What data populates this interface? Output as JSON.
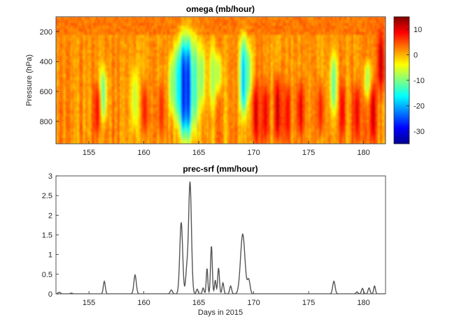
{
  "chart_data": [
    {
      "type": "heatmap",
      "title": "omega (mb/hour)",
      "ylabel": "Pressure (hPa)",
      "xlabel": "",
      "xlim": [
        152,
        182
      ],
      "ylim": [
        950,
        100
      ],
      "x_ticks": [
        155,
        160,
        165,
        170,
        175,
        180
      ],
      "y_ticks": [
        200,
        400,
        600,
        800
      ],
      "colorbar": {
        "range": [
          -35,
          15
        ],
        "ticks": [
          10,
          0,
          -10,
          -20,
          -30
        ],
        "colormap": "jet"
      },
      "features": [
        {
          "x": 163.6,
          "p_min": 250,
          "p_max": 900,
          "value": -32
        },
        {
          "x": 164.1,
          "p_min": 250,
          "p_max": 900,
          "value": -30
        },
        {
          "x": 163.1,
          "p_min": 300,
          "p_max": 800,
          "value": -18
        },
        {
          "x": 162.6,
          "p_min": 350,
          "p_max": 750,
          "value": -10
        },
        {
          "x": 164.7,
          "p_min": 250,
          "p_max": 850,
          "value": -15
        },
        {
          "x": 165.3,
          "p_min": 300,
          "p_max": 700,
          "value": -10
        },
        {
          "x": 169.1,
          "p_min": 250,
          "p_max": 750,
          "value": -22
        },
        {
          "x": 169.5,
          "p_min": 300,
          "p_max": 650,
          "value": -12
        },
        {
          "x": 166.3,
          "p_min": 300,
          "p_max": 700,
          "value": -9
        },
        {
          "x": 166.8,
          "p_min": 350,
          "p_max": 600,
          "value": -8
        },
        {
          "x": 156.3,
          "p_min": 450,
          "p_max": 800,
          "value": -13
        },
        {
          "x": 159.2,
          "p_min": 450,
          "p_max": 850,
          "value": -7
        },
        {
          "x": 177.3,
          "p_min": 350,
          "p_max": 750,
          "value": -12
        },
        {
          "x": 180.4,
          "p_min": 400,
          "p_max": 650,
          "value": -9
        },
        {
          "x": 155.8,
          "p_min": 550,
          "p_max": 900,
          "value": 9
        },
        {
          "x": 160.1,
          "p_min": 550,
          "p_max": 900,
          "value": 8
        },
        {
          "x": 161.6,
          "p_min": 550,
          "p_max": 900,
          "value": 7
        },
        {
          "x": 170.2,
          "p_min": 550,
          "p_max": 950,
          "value": 11
        },
        {
          "x": 171.1,
          "p_min": 550,
          "p_max": 950,
          "value": 10
        },
        {
          "x": 172.2,
          "p_min": 500,
          "p_max": 950,
          "value": 12
        },
        {
          "x": 173.1,
          "p_min": 550,
          "p_max": 950,
          "value": 9
        },
        {
          "x": 174.3,
          "p_min": 550,
          "p_max": 900,
          "value": 10
        },
        {
          "x": 176.1,
          "p_min": 550,
          "p_max": 900,
          "value": 8
        },
        {
          "x": 178.1,
          "p_min": 550,
          "p_max": 900,
          "value": 9
        },
        {
          "x": 179.4,
          "p_min": 550,
          "p_max": 950,
          "value": 10
        },
        {
          "x": 180.9,
          "p_min": 550,
          "p_max": 950,
          "value": 11
        },
        {
          "x": 181.6,
          "p_min": 200,
          "p_max": 600,
          "value": 12
        }
      ]
    },
    {
      "type": "line",
      "title": "prec-srf (mm/hour)",
      "xlabel": "Days in 2015",
      "ylabel": "",
      "xlim": [
        152,
        182
      ],
      "ylim": [
        0,
        3
      ],
      "x_ticks": [
        155,
        160,
        165,
        170,
        175,
        180
      ],
      "y_ticks": [
        0,
        0.5,
        1,
        1.5,
        2,
        2.5,
        3
      ],
      "color": "#555555",
      "baseline": 0,
      "peaks": [
        {
          "x": 152.3,
          "y": 0.04,
          "w": 0.12
        },
        {
          "x": 153.4,
          "y": 0.02,
          "w": 0.1
        },
        {
          "x": 156.4,
          "y": 0.32,
          "w": 0.09
        },
        {
          "x": 159.2,
          "y": 0.48,
          "w": 0.11
        },
        {
          "x": 162.5,
          "y": 0.1,
          "w": 0.1
        },
        {
          "x": 163.4,
          "y": 1.82,
          "w": 0.13
        },
        {
          "x": 163.9,
          "y": 0.55,
          "w": 0.1
        },
        {
          "x": 164.2,
          "y": 2.85,
          "w": 0.13
        },
        {
          "x": 164.85,
          "y": 0.12,
          "w": 0.08
        },
        {
          "x": 165.4,
          "y": 0.15,
          "w": 0.08
        },
        {
          "x": 165.75,
          "y": 0.65,
          "w": 0.07
        },
        {
          "x": 166.15,
          "y": 1.22,
          "w": 0.08
        },
        {
          "x": 166.5,
          "y": 0.35,
          "w": 0.07
        },
        {
          "x": 166.8,
          "y": 0.66,
          "w": 0.08
        },
        {
          "x": 167.2,
          "y": 0.28,
          "w": 0.08
        },
        {
          "x": 167.9,
          "y": 0.2,
          "w": 0.09
        },
        {
          "x": 169.0,
          "y": 1.52,
          "w": 0.2
        },
        {
          "x": 169.55,
          "y": 0.35,
          "w": 0.12
        },
        {
          "x": 177.3,
          "y": 0.32,
          "w": 0.11
        },
        {
          "x": 179.4,
          "y": 0.05,
          "w": 0.09
        },
        {
          "x": 179.9,
          "y": 0.14,
          "w": 0.09
        },
        {
          "x": 180.5,
          "y": 0.15,
          "w": 0.09
        },
        {
          "x": 181.0,
          "y": 0.2,
          "w": 0.08
        }
      ]
    }
  ]
}
